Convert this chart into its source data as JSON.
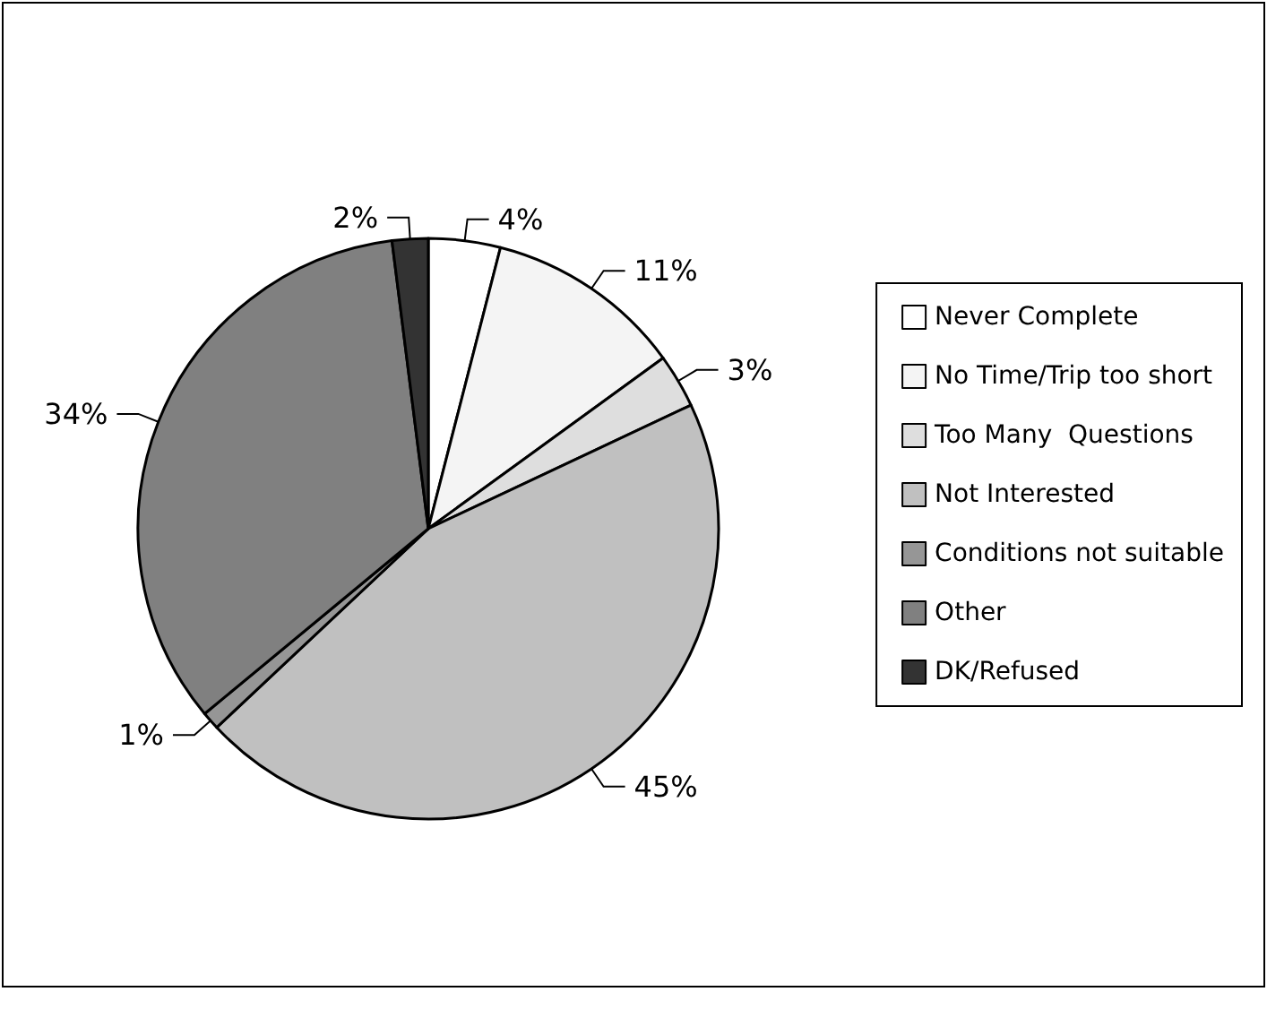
{
  "chart_data": {
    "type": "pie",
    "categories": [
      "Never Complete",
      "No Time/Trip too short",
      "Too Many  Questions",
      "Not Interested",
      "Conditions not suitable",
      "Other",
      "DK/Refused"
    ],
    "values": [
      4,
      11,
      3,
      45,
      1,
      34,
      2
    ],
    "value_labels": [
      "4%",
      "11%",
      "3%",
      "45%",
      "1%",
      "34%",
      "2%"
    ],
    "colors": [
      "#ffffff",
      "#f4f4f4",
      "#dedede",
      "#c0c0c0",
      "#969696",
      "#808080",
      "#333333"
    ],
    "legend": "right"
  }
}
